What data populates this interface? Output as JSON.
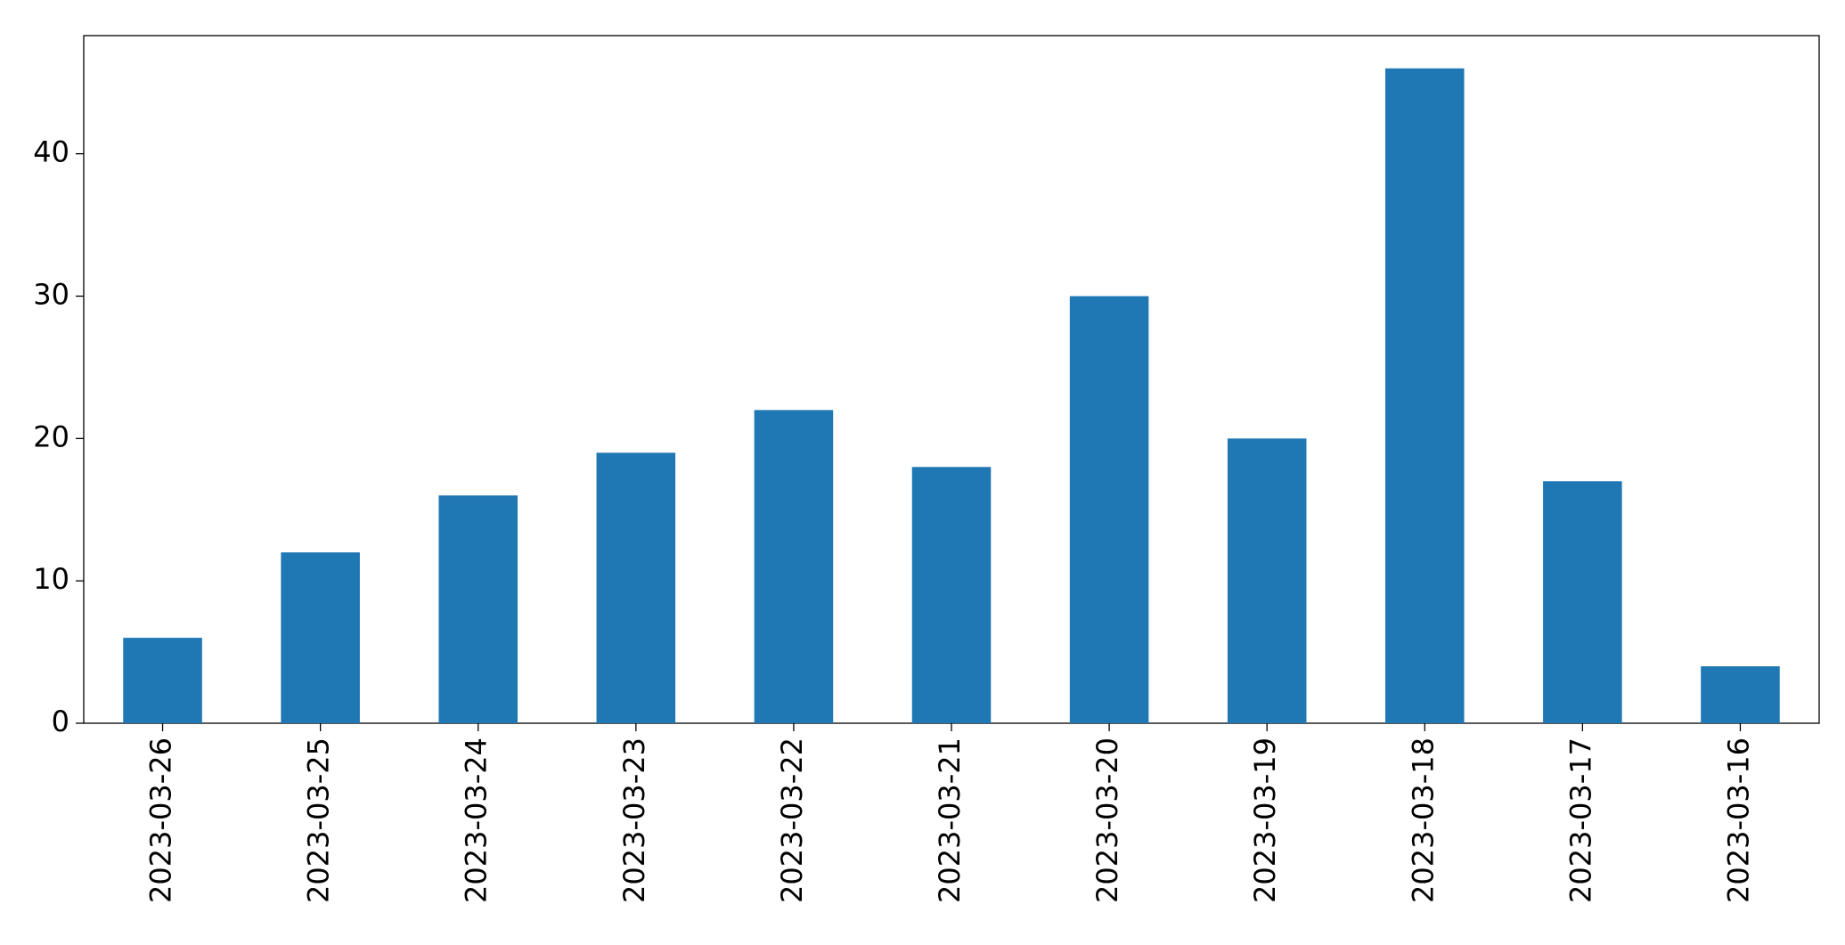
{
  "chart_data": {
    "type": "bar",
    "categories": [
      "2023-03-26",
      "2023-03-25",
      "2023-03-24",
      "2023-03-23",
      "2023-03-22",
      "2023-03-21",
      "2023-03-20",
      "2023-03-19",
      "2023-03-18",
      "2023-03-17",
      "2023-03-16"
    ],
    "values": [
      6,
      12,
      16,
      19,
      22,
      18,
      30,
      20,
      46,
      17,
      4
    ],
    "color": "#1f77b4",
    "ylim": [
      0,
      48.3
    ],
    "yticks": [
      0,
      10,
      20,
      30,
      40
    ],
    "grid": false
  }
}
